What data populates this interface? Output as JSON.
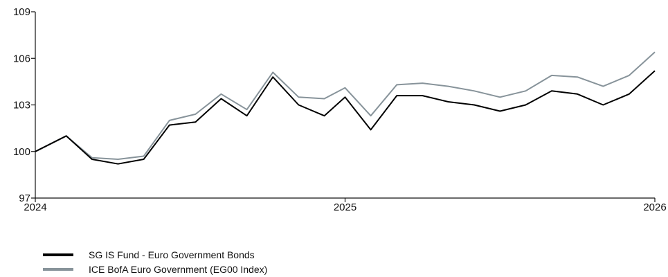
{
  "chart_data": {
    "type": "line",
    "xlim": [
      2024.0,
      2026.0
    ],
    "ylim": [
      97,
      109
    ],
    "yticks": [
      97,
      100,
      103,
      106,
      109
    ],
    "xticks": [
      2024,
      2025,
      2026
    ],
    "ytick_labels": [
      "97",
      "100",
      "103",
      "106",
      "109"
    ],
    "xtick_labels": [
      "2024",
      "2025",
      "2026"
    ],
    "x": [
      2024.0,
      2024.1,
      2024.183,
      2024.267,
      2024.35,
      2024.433,
      2024.517,
      2024.6,
      2024.683,
      2024.767,
      2024.85,
      2024.933,
      2025.0,
      2025.083,
      2025.167,
      2025.25,
      2025.333,
      2025.417,
      2025.5,
      2025.583,
      2025.667,
      2025.75,
      2025.833,
      2025.917,
      2026.0
    ],
    "series": [
      {
        "name": "SG IS Fund - Euro Government Bonds",
        "color": "#000000",
        "values": [
          100.0,
          101.0,
          99.5,
          99.2,
          99.5,
          101.7,
          101.9,
          103.4,
          102.3,
          104.8,
          103.0,
          102.3,
          103.5,
          101.4,
          103.6,
          103.6,
          103.2,
          103.0,
          102.6,
          103.0,
          103.9,
          103.7,
          103.0,
          103.7,
          105.2
        ]
      },
      {
        "name": "ICE BofA Euro Government (EG00 Index)",
        "color": "#87939a",
        "values": [
          100.0,
          101.0,
          99.6,
          99.5,
          99.7,
          102.0,
          102.4,
          103.7,
          102.7,
          105.1,
          103.5,
          103.4,
          104.1,
          102.3,
          104.3,
          104.4,
          104.2,
          103.9,
          103.5,
          103.9,
          104.9,
          104.8,
          104.2,
          104.9,
          106.4
        ]
      }
    ],
    "legend_position": "bottom-left",
    "grid": false
  }
}
